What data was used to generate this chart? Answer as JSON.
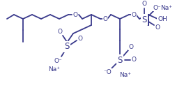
{
  "bg": "#ffffff",
  "lc": "#3a3a8c",
  "lw": 1.3,
  "fs": 6.5,
  "figsize": [
    2.74,
    1.29
  ],
  "dpi": 100,
  "xlim": [
    0,
    274
  ],
  "ylim": [
    0,
    129
  ]
}
